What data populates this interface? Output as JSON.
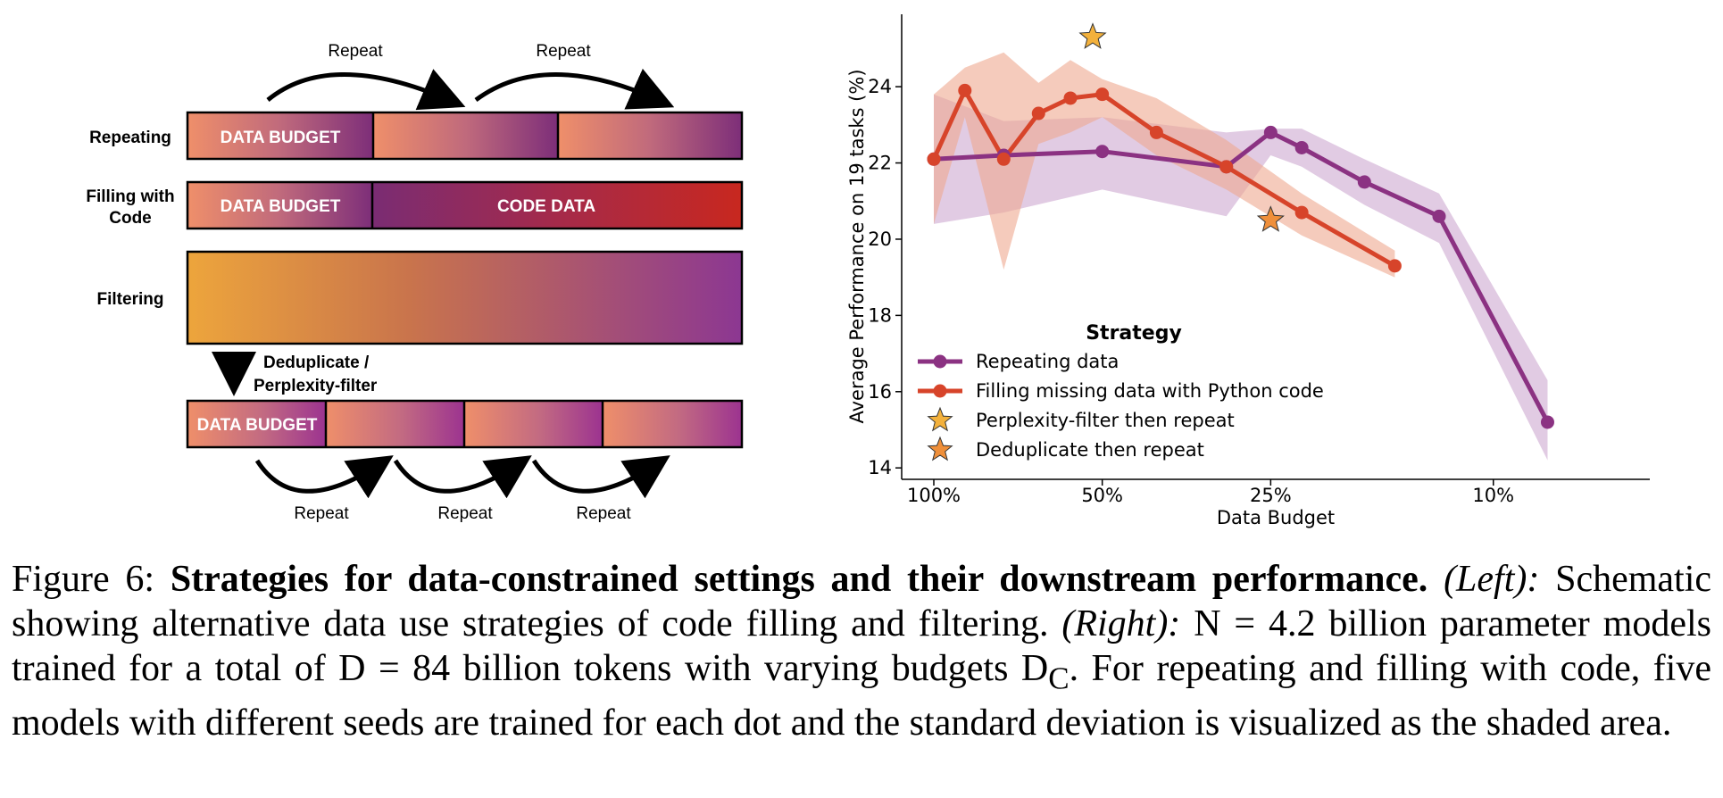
{
  "schematic": {
    "rows": {
      "repeating": "Repeating",
      "filling_line1": "Filling with",
      "filling_line2": "Code",
      "filtering": "Filtering"
    },
    "data_budget_label": "DATA BUDGET",
    "code_data_label": "CODE DATA",
    "repeat_label": "Repeat",
    "filter_step_line1": "Deduplicate /",
    "filter_step_line2": "Perplexity-filter"
  },
  "chart_data": {
    "type": "line",
    "xlabel": "Data Budget",
    "ylabel": "Average Performance on 19 tasks (%)",
    "x_ticks": [
      "100%",
      "50%",
      "25%",
      "10%"
    ],
    "y_ticks": [
      14,
      16,
      18,
      20,
      22,
      24
    ],
    "ylim": [
      13.7,
      25.9
    ],
    "grid": false,
    "legend": {
      "title": "Strategy",
      "position": "lower-left",
      "entries": [
        "Repeating data",
        "Filling missing data with Python code",
        "Perplexity-filter then repeat",
        "Deduplicate then repeat"
      ]
    },
    "series": [
      {
        "name": "Repeating data",
        "color": "#8b3282",
        "budget_pct": [
          100,
          75,
          50,
          30,
          25,
          22,
          17,
          12.5,
          8
        ],
        "y": [
          22.1,
          22.2,
          22.3,
          21.9,
          22.8,
          22.4,
          21.5,
          20.6,
          15.2
        ],
        "band_low": [
          20.4,
          20.7,
          21.3,
          20.6,
          22.2,
          21.9,
          20.9,
          19.9,
          14.2
        ],
        "band_high": [
          23.8,
          23.1,
          23.2,
          22.8,
          22.9,
          22.9,
          22.1,
          21.2,
          16.3
        ]
      },
      {
        "name": "Filling missing data with Python code",
        "color": "#d7442a",
        "budget_pct": [
          100,
          88,
          75,
          65,
          57,
          50,
          40,
          30,
          22,
          15
        ],
        "y": [
          22.1,
          23.9,
          22.1,
          23.3,
          23.7,
          23.8,
          22.8,
          21.9,
          20.7,
          19.3
        ],
        "band_low": [
          20.4,
          23.2,
          19.2,
          22.5,
          22.8,
          23.2,
          22.2,
          21.3,
          20.1,
          19.0
        ],
        "band_high": [
          23.8,
          24.5,
          24.9,
          24.1,
          24.7,
          24.2,
          23.7,
          22.6,
          21.2,
          19.7
        ]
      }
    ],
    "markers": [
      {
        "name": "Perplexity-filter then repeat",
        "budget_pct": 52,
        "y": 25.3,
        "color": "#f3b13c"
      },
      {
        "name": "Deduplicate then repeat",
        "budget_pct": 25,
        "y": 20.5,
        "color": "#ef8f3a"
      }
    ]
  },
  "caption": {
    "figure_num": "Figure 6:",
    "title": "Strategies for data-constrained settings and their downstream performance.",
    "left_tag": "(Left):",
    "left_text": "Schematic showing alternative data use strategies of code filling and filtering.",
    "right_tag": "(Right):",
    "right_text": "N = 4.2 billion parameter models trained for a total of D = 84 billion tokens with varying budgets D",
    "right_sub": "C",
    "rest": ". For repeating and filling with code, five models with different seeds are trained for each dot and the standard deviation is visualized as the shaded area."
  }
}
